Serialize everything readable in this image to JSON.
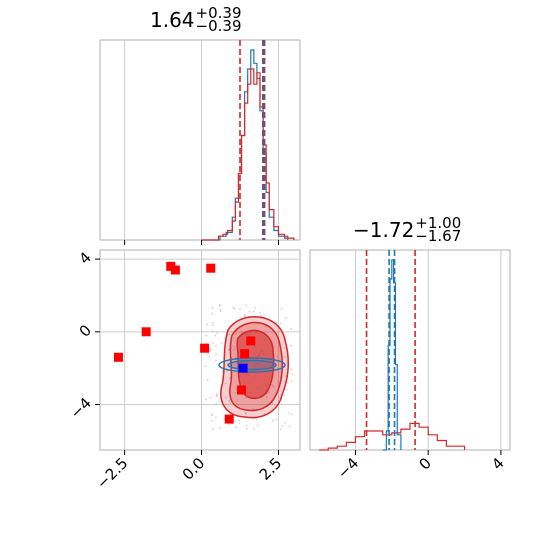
{
  "chart_data": {
    "type": "corner",
    "colors": {
      "model_a": "#d62728",
      "model_b": "#1f77b4",
      "points": "#ff0000",
      "true_marker": "#0000ff",
      "hist_a": "#d62728",
      "hist_b": "#1f77b4"
    },
    "param1": {
      "title_value": "1.64",
      "title_plus": "+0.39",
      "title_minus": "−0.39",
      "axis_range": [
        -3.3,
        3.2
      ],
      "xticks": [
        -2.5,
        0.0,
        2.5
      ],
      "xtick_labels": [
        "−2.5",
        "0.0",
        "2.5"
      ],
      "quantiles_a": [
        1.25,
        2.03
      ],
      "quantiles_b": [
        1.99,
        2.05
      ],
      "hist_a": [
        [
          0.0,
          0.0
        ],
        [
          0.55,
          0.02
        ],
        [
          0.7,
          0.03
        ],
        [
          0.85,
          0.05
        ],
        [
          1.0,
          0.1
        ],
        [
          1.1,
          0.2
        ],
        [
          1.2,
          0.35
        ],
        [
          1.3,
          0.55
        ],
        [
          1.4,
          0.72
        ],
        [
          1.5,
          0.82
        ],
        [
          1.6,
          0.9
        ],
        [
          1.7,
          0.82
        ],
        [
          1.8,
          0.88
        ],
        [
          1.9,
          0.7
        ],
        [
          2.0,
          0.5
        ],
        [
          2.1,
          0.3
        ],
        [
          2.2,
          0.16
        ],
        [
          2.35,
          0.07
        ],
        [
          2.5,
          0.03
        ],
        [
          2.7,
          0.01
        ],
        [
          3.0,
          0.0
        ]
      ],
      "hist_b": [
        [
          0.0,
          0.0
        ],
        [
          0.6,
          0.02
        ],
        [
          0.8,
          0.04
        ],
        [
          1.0,
          0.12
        ],
        [
          1.1,
          0.22
        ],
        [
          1.2,
          0.35
        ],
        [
          1.3,
          0.55
        ],
        [
          1.4,
          0.78
        ],
        [
          1.5,
          0.9
        ],
        [
          1.6,
          1.0
        ],
        [
          1.7,
          0.93
        ],
        [
          1.8,
          0.85
        ],
        [
          1.9,
          0.68
        ],
        [
          2.0,
          0.45
        ],
        [
          2.1,
          0.25
        ],
        [
          2.2,
          0.12
        ],
        [
          2.35,
          0.05
        ],
        [
          2.5,
          0.02
        ],
        [
          2.8,
          0.0
        ]
      ]
    },
    "param2": {
      "title_value": "−1.72",
      "title_plus": "+1.00",
      "title_minus": "−1.67",
      "axis_range": [
        -6.5,
        4.5
      ],
      "xticks": [
        -4,
        0,
        4
      ],
      "xtick_labels": [
        "−4",
        "0",
        "4"
      ],
      "yticks": [
        -4,
        0,
        4
      ],
      "ytick_labels": [
        "−4",
        "0",
        "4"
      ],
      "quantiles_a": [
        -3.39,
        -0.72
      ],
      "quantiles_b": [
        -2.15,
        -1.85
      ],
      "hist_a": [
        [
          -6.0,
          0.0
        ],
        [
          -5.5,
          0.01
        ],
        [
          -5.0,
          0.02
        ],
        [
          -4.5,
          0.04
        ],
        [
          -4.0,
          0.07
        ],
        [
          -3.5,
          0.1
        ],
        [
          -3.0,
          0.1
        ],
        [
          -2.5,
          0.08
        ],
        [
          -2.0,
          0.09
        ],
        [
          -1.5,
          0.11
        ],
        [
          -1.0,
          0.14
        ],
        [
          -0.5,
          0.12
        ],
        [
          0.0,
          0.08
        ],
        [
          0.5,
          0.05
        ],
        [
          1.0,
          0.02
        ],
        [
          2.0,
          0.0
        ]
      ],
      "hist_b": [
        [
          -2.5,
          0.0
        ],
        [
          -2.3,
          0.1
        ],
        [
          -2.2,
          0.55
        ],
        [
          -2.1,
          0.9
        ],
        [
          -2.0,
          1.0
        ],
        [
          -1.9,
          0.88
        ],
        [
          -1.8,
          0.45
        ],
        [
          -1.7,
          0.08
        ],
        [
          -1.5,
          0.0
        ]
      ]
    },
    "scatter_points": [
      [
        -2.7,
        -1.4
      ],
      [
        -1.8,
        0.0
      ],
      [
        -1.0,
        3.6
      ],
      [
        -0.85,
        3.4
      ],
      [
        0.3,
        3.5
      ],
      [
        0.1,
        -0.9
      ],
      [
        1.6,
        -0.5
      ],
      [
        1.4,
        -1.2
      ],
      [
        1.3,
        -3.2
      ],
      [
        0.9,
        -4.8
      ]
    ],
    "true_marker": [
      1.35,
      -2.0
    ]
  }
}
